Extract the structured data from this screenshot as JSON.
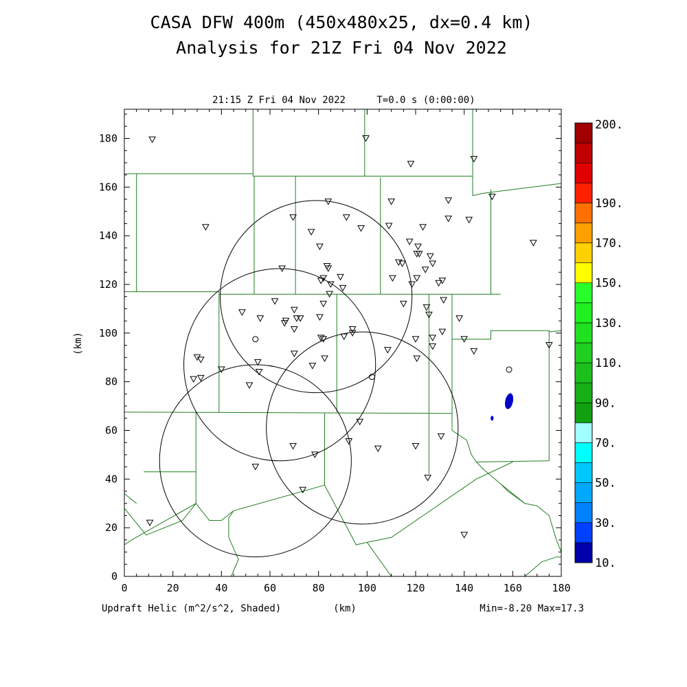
{
  "header": {
    "title_line1": "CASA DFW 400m (450x480x25, dx=0.4 km)",
    "title_line2": "Analysis for 21Z Fri 04 Nov 2022",
    "valid_time": "21:15 Z Fri 04 Nov 2022",
    "forecast_time": "T=0.0 s (0:00:00)"
  },
  "footer": {
    "field_label": "Updraft Helic (m^2/s^2, Shaded)",
    "x_unit": "(km)",
    "min_max": "Min=-8.20 Max=17.3"
  },
  "axes": {
    "x_range_km": [
      0,
      180
    ],
    "y_range_km": [
      0,
      192
    ],
    "x_ticks": [
      0,
      20,
      40,
      60,
      80,
      100,
      120,
      140,
      160,
      180
    ],
    "y_ticks": [
      0,
      20,
      40,
      60,
      80,
      100,
      120,
      140,
      160,
      180
    ],
    "y_label": "(km)"
  },
  "colors": {
    "county_lines": "#1e7d1e",
    "range_rings": "#000000",
    "updraft_shading": "#0000c8"
  },
  "colorbar": {
    "colors": [
      "#0000aa",
      "#0040ff",
      "#0080ff",
      "#00a8ff",
      "#00c8ff",
      "#00ffff",
      "#a0ffff",
      "#10a010",
      "#16b016",
      "#1cc01c",
      "#20d020",
      "#20e020",
      "#20f020",
      "#28ff28",
      "#ffff00",
      "#ffd000",
      "#ffa000",
      "#ff7000",
      "#ff2000",
      "#e00000",
      "#c00000",
      "#a00000"
    ],
    "labels": [
      "10.",
      "30.",
      "50.",
      "70.",
      "90.",
      "110.",
      "130.",
      "150.",
      "170.",
      "190.",
      "200."
    ]
  },
  "radars": [
    {
      "x": 54,
      "y": 97.5
    },
    {
      "x": 102,
      "y": 82
    },
    {
      "x": 158.5,
      "y": 85
    }
  ],
  "range_rings_km": [
    {
      "cx": 79,
      "cy": 115,
      "r": 39.5
    },
    {
      "cx": 64,
      "cy": 87,
      "r": 39.5
    },
    {
      "cx": 98,
      "cy": 61,
      "r": 39.5
    },
    {
      "cx": 54,
      "cy": 47.5,
      "r": 39.5
    }
  ],
  "stations": [
    [
      11.5,
      179.5
    ],
    [
      99.5,
      180
    ],
    [
      118,
      169.5
    ],
    [
      144,
      171.5
    ],
    [
      151.5,
      156
    ],
    [
      33.5,
      143.5
    ],
    [
      69.5,
      147.5
    ],
    [
      84,
      154
    ],
    [
      91.5,
      147.5
    ],
    [
      97.5,
      143
    ],
    [
      110,
      154
    ],
    [
      109,
      144
    ],
    [
      123,
      143.5
    ],
    [
      133.5,
      154.5
    ],
    [
      133.5,
      147
    ],
    [
      142,
      146.5
    ],
    [
      168.5,
      137
    ],
    [
      77,
      141.5
    ],
    [
      80.5,
      135.5
    ],
    [
      117.5,
      137.5
    ],
    [
      121,
      135.5
    ],
    [
      120.5,
      132.5
    ],
    [
      121.5,
      132.5
    ],
    [
      126,
      131.5
    ],
    [
      113,
      129
    ],
    [
      114.5,
      128.5
    ],
    [
      124,
      126
    ],
    [
      127,
      128.5
    ],
    [
      83.5,
      127.5
    ],
    [
      84,
      126.5
    ],
    [
      65,
      126.5
    ],
    [
      82,
      122.5
    ],
    [
      81,
      121.5
    ],
    [
      85,
      120
    ],
    [
      89,
      123
    ],
    [
      90,
      118.5
    ],
    [
      110.5,
      122.5
    ],
    [
      118.5,
      120
    ],
    [
      120.5,
      122.5
    ],
    [
      129.5,
      120.5
    ],
    [
      131,
      121.5
    ],
    [
      84.5,
      116
    ],
    [
      82,
      112
    ],
    [
      62,
      113
    ],
    [
      70,
      109.5
    ],
    [
      56,
      106
    ],
    [
      48.5,
      108.5
    ],
    [
      66.5,
      105
    ],
    [
      66,
      104
    ],
    [
      71,
      106
    ],
    [
      72.5,
      106
    ],
    [
      70,
      101.5
    ],
    [
      80.5,
      106.5
    ],
    [
      115,
      112
    ],
    [
      124.5,
      110.5
    ],
    [
      125.5,
      107.5
    ],
    [
      131.5,
      113.5
    ],
    [
      138,
      106
    ],
    [
      81,
      98
    ],
    [
      82,
      97.5
    ],
    [
      90.5,
      98.5
    ],
    [
      94,
      101.5
    ],
    [
      94,
      100
    ],
    [
      120,
      97.5
    ],
    [
      127,
      98
    ],
    [
      131,
      100.5
    ],
    [
      140,
      97.5
    ],
    [
      144,
      92.5
    ],
    [
      127,
      94.5
    ],
    [
      175,
      95
    ],
    [
      108.5,
      93
    ],
    [
      120.5,
      89.5
    ],
    [
      82.5,
      89.5
    ],
    [
      70,
      91.5
    ],
    [
      77.5,
      86.5
    ],
    [
      30,
      90
    ],
    [
      31.5,
      89
    ],
    [
      28.5,
      81
    ],
    [
      31.5,
      81.5
    ],
    [
      40,
      85
    ],
    [
      55,
      88
    ],
    [
      55.5,
      84
    ],
    [
      51.5,
      78.5
    ],
    [
      97,
      63.5
    ],
    [
      92.5,
      55.5
    ],
    [
      104.5,
      52.5
    ],
    [
      120,
      53.5
    ],
    [
      130.5,
      57.5
    ],
    [
      69.5,
      53.5
    ],
    [
      78.5,
      50
    ],
    [
      54,
      45
    ],
    [
      73.5,
      35.5
    ],
    [
      125,
      40.5
    ],
    [
      10.5,
      22
    ],
    [
      140,
      17
    ]
  ],
  "county_lines": [
    [
      [
        0,
        165.5
      ],
      [
        53,
        165.5
      ],
      [
        53,
        192
      ]
    ],
    [
      [
        99,
        192
      ],
      [
        99,
        164.5
      ],
      [
        143.5,
        164.5
      ]
    ],
    [
      [
        53,
        165.5
      ],
      [
        53,
        164.5
      ],
      [
        99,
        164.5
      ]
    ],
    [
      [
        143.5,
        192
      ],
      [
        143.5,
        156.5
      ],
      [
        148,
        157.5
      ],
      [
        180,
        161.5
      ]
    ],
    [
      [
        5,
        165.5
      ],
      [
        5,
        117
      ]
    ],
    [
      [
        0,
        117
      ],
      [
        39,
        117
      ],
      [
        39,
        67.5
      ]
    ],
    [
      [
        53.5,
        164.5
      ],
      [
        53.5,
        116
      ]
    ],
    [
      [
        0,
        67.5
      ],
      [
        135,
        67
      ]
    ],
    [
      [
        39,
        116
      ],
      [
        155,
        116
      ]
    ],
    [
      [
        70.5,
        164.5
      ],
      [
        70.5,
        116
      ]
    ],
    [
      [
        105.5,
        164
      ],
      [
        105.5,
        116
      ]
    ],
    [
      [
        151,
        159
      ],
      [
        151,
        116
      ]
    ],
    [
      [
        125.5,
        116
      ],
      [
        125.5,
        42
      ]
    ],
    [
      [
        87.5,
        116
      ],
      [
        87.5,
        67.5
      ]
    ],
    [
      [
        135,
        116
      ],
      [
        135,
        67
      ],
      [
        135,
        60
      ],
      [
        141,
        56
      ],
      [
        143,
        50
      ],
      [
        145,
        47
      ]
    ],
    [
      [
        135,
        97.5
      ],
      [
        151,
        97.5
      ],
      [
        151,
        101
      ],
      [
        175,
        101
      ],
      [
        175,
        47.5
      ],
      [
        145,
        47
      ],
      [
        148,
        44
      ],
      [
        155,
        38
      ],
      [
        165,
        30
      ]
    ],
    [
      [
        175,
        100.5
      ],
      [
        180,
        101
      ]
    ],
    [
      [
        82.5,
        67
      ],
      [
        82.5,
        37.5
      ],
      [
        95.5,
        13
      ],
      [
        100,
        14
      ],
      [
        110,
        16
      ],
      [
        145,
        40
      ],
      [
        160,
        47
      ]
    ],
    [
      [
        82.5,
        37.5
      ],
      [
        45,
        27
      ],
      [
        40,
        23
      ],
      [
        35,
        23
      ],
      [
        29.5,
        30
      ],
      [
        3,
        15
      ],
      [
        0,
        13
      ]
    ],
    [
      [
        29.5,
        67.5
      ],
      [
        29.5,
        30
      ],
      [
        24,
        23
      ],
      [
        9,
        17
      ],
      [
        0,
        28
      ]
    ],
    [
      [
        45,
        27
      ],
      [
        45,
        27
      ],
      [
        43,
        24
      ],
      [
        43,
        16
      ],
      [
        47,
        7
      ],
      [
        44,
        0
      ]
    ],
    [
      [
        100,
        14
      ],
      [
        110,
        0
      ]
    ],
    [
      [
        0,
        34
      ],
      [
        5,
        30
      ]
    ],
    [
      [
        8,
        43
      ],
      [
        29.5,
        43
      ]
    ],
    [
      [
        155,
        38
      ],
      [
        158,
        35
      ],
      [
        165,
        30
      ],
      [
        170,
        29
      ],
      [
        175,
        25
      ],
      [
        178,
        15
      ],
      [
        180,
        10
      ]
    ],
    [
      [
        165,
        0
      ],
      [
        172,
        6
      ],
      [
        178,
        8
      ],
      [
        180,
        8
      ]
    ]
  ],
  "updraft_cells": [
    {
      "x": 158.5,
      "y": 72,
      "rx": 1.6,
      "ry": 3.3,
      "rot": 12
    },
    {
      "x": 151.5,
      "y": 65,
      "rx": 0.6,
      "ry": 1.0,
      "rot": 0
    }
  ]
}
